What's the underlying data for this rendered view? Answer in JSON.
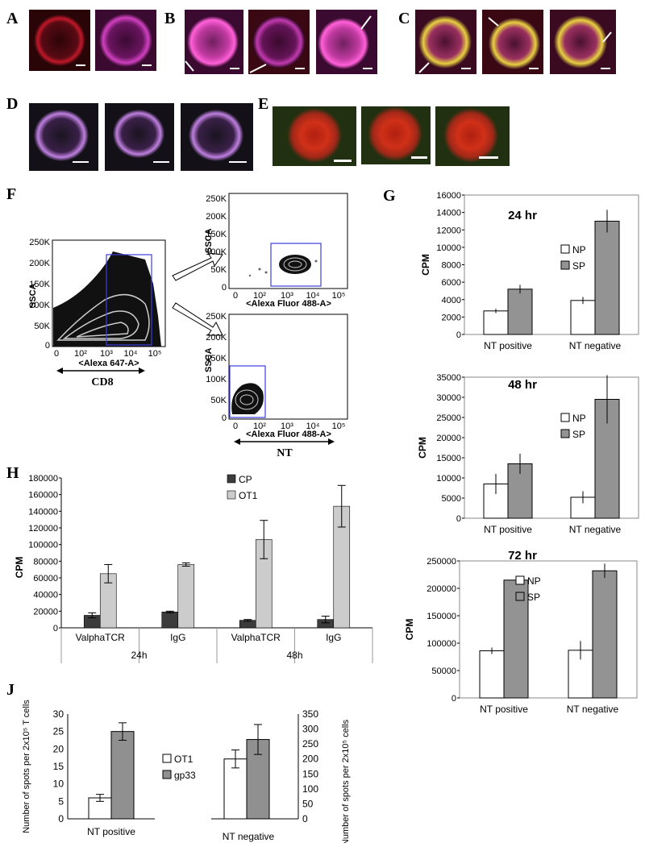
{
  "panel_labels": {
    "A": "A",
    "B": "B",
    "C": "C",
    "D": "D",
    "E": "E",
    "F": "F",
    "G": "G",
    "H": "H",
    "J": "J"
  },
  "colors": {
    "np_fill": "#ffffff",
    "sp_fill": "#939393",
    "cp_fill": "#3c3c3c",
    "ot1_fill": "#cccccc",
    "gp33_fill": "#909090",
    "gate": "#3e3ee0"
  },
  "micrographs": {
    "A": [
      {
        "style": "red-ring"
      },
      {
        "style": "magenta-ring"
      }
    ],
    "B": [
      {
        "style": "magenta-bright",
        "arrow": true
      },
      {
        "style": "red-pink",
        "arrow": true
      },
      {
        "style": "magenta-ring",
        "arrow": true
      }
    ],
    "C": [
      {
        "style": "yellow-magenta",
        "arrow": true
      },
      {
        "style": "red-yellow",
        "arrow": true
      },
      {
        "style": "yellow-magenta",
        "arrow": true
      }
    ],
    "D": [
      {
        "style": "violet-dots"
      },
      {
        "style": "violet-dots"
      },
      {
        "style": "violet-dots"
      }
    ],
    "E": [
      {
        "style": "red-green"
      },
      {
        "style": "red-green"
      },
      {
        "style": "red-green"
      }
    ]
  },
  "flow": {
    "main": {
      "y_label": "SSCA",
      "x_label": "<Alexa 647-A>",
      "marker": "CD8",
      "y_ticks": [
        "0",
        "50K",
        "100K",
        "150K",
        "200K",
        "250K"
      ],
      "x_ticks": [
        "0",
        "10²",
        "10³",
        "10⁴",
        "10⁵"
      ]
    },
    "top": {
      "y_label": "SSCA",
      "x_label": "<Alexa Fluor 488-A>",
      "y_ticks": [
        "0",
        "50K",
        "100K",
        "150K",
        "200K",
        "250K"
      ],
      "x_ticks": [
        "0",
        "10²",
        "10³",
        "10⁴",
        "10⁵"
      ]
    },
    "bottom": {
      "y_label": "SSCA",
      "x_label": "<Alexa Fluor 488-A>",
      "marker": "NT",
      "y_ticks": [
        "0",
        "50K",
        "100K",
        "150K",
        "200K",
        "250K"
      ],
      "x_ticks": [
        "0",
        "10²",
        "10³",
        "10⁴",
        "10⁵"
      ]
    }
  },
  "chart_data": [
    {
      "id": "G24",
      "type": "bar",
      "title": "24 hr",
      "ylabel": "CPM",
      "categories": [
        "NT positive",
        "NT negative"
      ],
      "ylim": [
        0,
        16000
      ],
      "yticks": [
        0,
        2000,
        4000,
        6000,
        8000,
        10000,
        12000,
        14000,
        16000
      ],
      "series": [
        {
          "name": "NP",
          "values": [
            2700,
            3900
          ],
          "errors": [
            250,
            400
          ]
        },
        {
          "name": "SP",
          "values": [
            5200,
            13000
          ],
          "errors": [
            500,
            1300
          ]
        }
      ],
      "legend": "right"
    },
    {
      "id": "G48",
      "type": "bar",
      "title": "48 hr",
      "ylabel": "CPM",
      "categories": [
        "NT positive",
        "NT negative"
      ],
      "ylim": [
        0,
        35000
      ],
      "yticks": [
        0,
        5000,
        10000,
        15000,
        20000,
        25000,
        30000,
        35000
      ],
      "series": [
        {
          "name": "NP",
          "values": [
            8500,
            5200
          ],
          "errors": [
            2500,
            1500
          ]
        },
        {
          "name": "SP",
          "values": [
            13500,
            29500
          ],
          "errors": [
            2500,
            6000
          ]
        }
      ],
      "legend": "right"
    },
    {
      "id": "G72",
      "type": "bar",
      "title": "72 hr",
      "ylabel": "CPM",
      "categories": [
        "NT positive",
        "NT negative"
      ],
      "ylim": [
        0,
        250000
      ],
      "yticks": [
        0,
        50000,
        100000,
        150000,
        200000,
        250000
      ],
      "series": [
        {
          "name": "NP",
          "values": [
            86000,
            87000
          ],
          "errors": [
            6000,
            17000
          ]
        },
        {
          "name": "SP",
          "values": [
            215000,
            232000
          ],
          "errors": [
            5000,
            13000
          ]
        }
      ],
      "legend": "right"
    },
    {
      "id": "H",
      "type": "bar",
      "ylabel": "CPM",
      "categories": [
        "ValphaTCR",
        "IgG",
        "ValphaTCR",
        "IgG"
      ],
      "groups": [
        "24h",
        "48h"
      ],
      "ylim": [
        0,
        180000
      ],
      "yticks": [
        0,
        20000,
        40000,
        60000,
        80000,
        100000,
        120000,
        140000,
        160000,
        180000
      ],
      "series": [
        {
          "name": "CP",
          "values": [
            15000,
            19000,
            9000,
            10000
          ],
          "errors": [
            3000,
            1000,
            1000,
            4000
          ]
        },
        {
          "name": "OT1",
          "values": [
            65000,
            76000,
            106000,
            146000
          ],
          "errors": [
            11000,
            2000,
            23000,
            25000
          ]
        }
      ],
      "legend": "top-right"
    },
    {
      "id": "J",
      "type": "bar",
      "ylabel_left": "Number of spots per 2x10⁵ T cells",
      "ylabel_right": "Number of spots per 2x10⁵ cells",
      "categories": [
        "NT positive",
        "NT negative"
      ],
      "left": {
        "ylim": [
          0,
          30
        ],
        "yticks": [
          0,
          5,
          10,
          15,
          20,
          25,
          30
        ],
        "series": [
          {
            "name": "OT1",
            "value": 6,
            "error": 1
          },
          {
            "name": "gp33",
            "value": 25,
            "error": 2.5
          }
        ]
      },
      "right": {
        "ylim": [
          0,
          350
        ],
        "yticks": [
          0,
          50,
          100,
          150,
          200,
          250,
          300,
          350
        ],
        "series": [
          {
            "name": "OT1",
            "value": 200,
            "error": 30
          },
          {
            "name": "gp33",
            "value": 265,
            "error": 50
          }
        ]
      },
      "legend": "center"
    }
  ]
}
